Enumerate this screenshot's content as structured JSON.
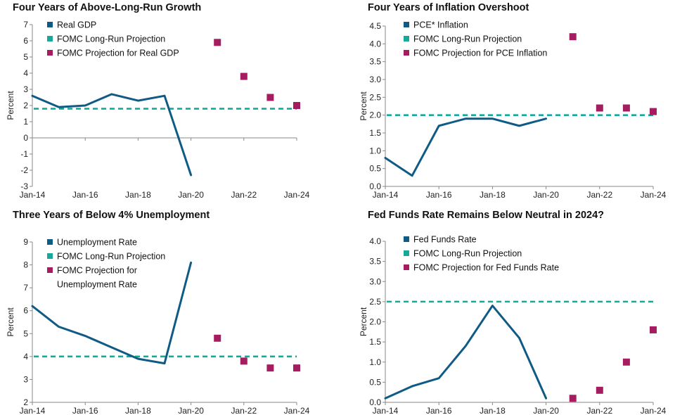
{
  "colors": {
    "series": "#0f5b85",
    "long_run": "#18a89a",
    "projection": "#a51d5f",
    "axis": "#888888"
  },
  "chart_data": [
    {
      "type": "line",
      "title": "Four Years of Above-Long-Run Growth",
      "ylabel": "Percent",
      "xlabel": "",
      "ylim": [
        -3,
        7
      ],
      "yticks": [
        "7",
        "6",
        "5",
        "4",
        "3",
        "2",
        "1",
        "0",
        "-1",
        "-2",
        "-3"
      ],
      "ytick_values": [
        7,
        6,
        5,
        4,
        3,
        2,
        1,
        0,
        -1,
        -2,
        -3
      ],
      "xlim": [
        2014,
        2024
      ],
      "xticks": [
        "Jan-14",
        "Jan-16",
        "Jan-18",
        "Jan-20",
        "Jan-22",
        "Jan-24"
      ],
      "xtick_values": [
        2014,
        2016,
        2018,
        2020,
        2022,
        2024
      ],
      "legend": [
        "Real GDP",
        "FOMC Long-Run Projection",
        "FOMC Projection for Real GDP"
      ],
      "series": [
        {
          "name": "Real GDP",
          "x": [
            2014,
            2015,
            2016,
            2017,
            2018,
            2019,
            2020
          ],
          "y": [
            2.6,
            1.9,
            2.0,
            2.7,
            2.3,
            2.6,
            -2.3
          ]
        }
      ],
      "long_run": {
        "name": "FOMC Long-Run Projection",
        "value": 1.8
      },
      "projections": {
        "name": "FOMC Projection for Real GDP",
        "x": [
          2021,
          2022,
          2023,
          2024
        ],
        "y": [
          5.9,
          3.8,
          2.5,
          2.0
        ]
      }
    },
    {
      "type": "line",
      "title": "Four Years of Inflation Overshoot",
      "ylabel": "Percent",
      "xlabel": "",
      "ylim": [
        0,
        4.5
      ],
      "yticks": [
        "4.5",
        "4.0",
        "3.5",
        "3.0",
        "2.5",
        "2.0",
        "1.5",
        "1.0",
        "0.5",
        "0.0"
      ],
      "ytick_values": [
        4.5,
        4.0,
        3.5,
        3.0,
        2.5,
        2.0,
        1.5,
        1.0,
        0.5,
        0.0
      ],
      "xlim": [
        2014,
        2024
      ],
      "xticks": [
        "Jan-14",
        "Jan-16",
        "Jan-18",
        "Jan-20",
        "Jan-22",
        "Jan-24"
      ],
      "xtick_values": [
        2014,
        2016,
        2018,
        2020,
        2022,
        2024
      ],
      "legend": [
        "PCE* Inflation",
        "FOMC Long-Run Projection",
        "FOMC Projection for PCE Inflation"
      ],
      "series": [
        {
          "name": "PCE* Inflation",
          "x": [
            2014,
            2015,
            2016,
            2017,
            2018,
            2019,
            2020
          ],
          "y": [
            0.8,
            0.3,
            1.7,
            1.9,
            1.9,
            1.7,
            1.9
          ]
        }
      ],
      "long_run": {
        "name": "FOMC Long-Run Projection",
        "value": 2.0
      },
      "projections": {
        "name": "FOMC Projection for PCE Inflation",
        "x": [
          2021,
          2022,
          2023,
          2024
        ],
        "y": [
          4.2,
          2.2,
          2.2,
          2.1
        ]
      }
    },
    {
      "type": "line",
      "title": "Three Years of Below 4% Unemployment",
      "ylabel": "Percent",
      "xlabel": "",
      "ylim": [
        2,
        9
      ],
      "yticks": [
        "9",
        "8",
        "7",
        "6",
        "5",
        "4",
        "3",
        "2"
      ],
      "ytick_values": [
        9,
        8,
        7,
        6,
        5,
        4,
        3,
        2
      ],
      "xlim": [
        2014,
        2024
      ],
      "xticks": [
        "Jan-14",
        "Jan-16",
        "Jan-18",
        "Jan-20",
        "Jan-22",
        "Jan-24"
      ],
      "xtick_values": [
        2014,
        2016,
        2018,
        2020,
        2022,
        2024
      ],
      "legend": [
        "Unemployment Rate",
        "FOMC Long-Run Projection",
        "FOMC Projection for",
        "Unemployment Rate"
      ],
      "series": [
        {
          "name": "Unemployment Rate",
          "x": [
            2014,
            2015,
            2016,
            2017,
            2018,
            2019,
            2020
          ],
          "y": [
            6.2,
            5.3,
            4.9,
            4.4,
            3.9,
            3.7,
            8.1
          ]
        }
      ],
      "long_run": {
        "name": "FOMC Long-Run Projection",
        "value": 4.0
      },
      "projections": {
        "name": "FOMC Projection for Unemployment Rate",
        "x": [
          2021,
          2022,
          2023,
          2024
        ],
        "y": [
          4.8,
          3.8,
          3.5,
          3.5
        ]
      }
    },
    {
      "type": "line",
      "title": "Fed Funds Rate Remains Below Neutral in 2024?",
      "ylabel": "Percent",
      "xlabel": "",
      "ylim": [
        0,
        4.0
      ],
      "yticks": [
        "4.0",
        "3.5",
        "3.0",
        "2.5",
        "2.0",
        "1.5",
        "1.0",
        "0.5",
        "0.0"
      ],
      "ytick_values": [
        4.0,
        3.5,
        3.0,
        2.5,
        2.0,
        1.5,
        1.0,
        0.5,
        0.0
      ],
      "xlim": [
        2014,
        2024
      ],
      "xticks": [
        "Jan-14",
        "Jan-16",
        "Jan-18",
        "Jan-20",
        "Jan-22",
        "Jan-24"
      ],
      "xtick_values": [
        2014,
        2016,
        2018,
        2020,
        2022,
        2024
      ],
      "legend": [
        "Fed Funds Rate",
        "FOMC Long-Run Projection",
        "FOMC Projection for Fed Funds Rate"
      ],
      "series": [
        {
          "name": "Fed Funds Rate",
          "x": [
            2014,
            2015,
            2016,
            2017,
            2018,
            2019,
            2020
          ],
          "y": [
            0.1,
            0.4,
            0.6,
            1.4,
            2.4,
            1.6,
            0.1
          ]
        }
      ],
      "long_run": {
        "name": "FOMC Long-Run Projection",
        "value": 2.5
      },
      "projections": {
        "name": "FOMC Projection for Fed Funds Rate",
        "x": [
          2021,
          2022,
          2023,
          2024
        ],
        "y": [
          0.1,
          0.3,
          1.0,
          1.8
        ]
      }
    }
  ]
}
